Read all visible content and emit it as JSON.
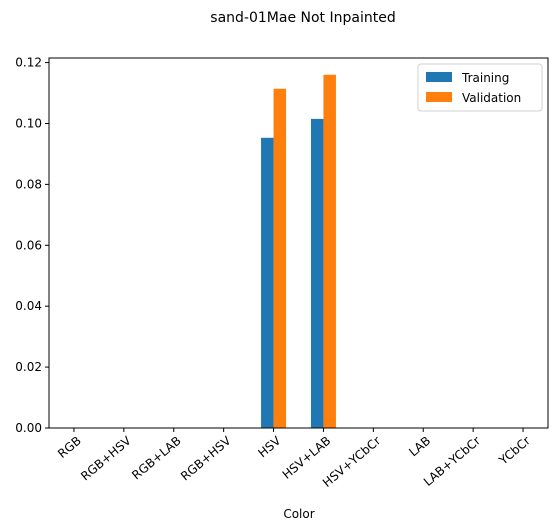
{
  "chart_data": {
    "type": "bar",
    "title": "sand-01Mae Not Inpainted",
    "xlabel": "Color",
    "ylabel": "",
    "categories": [
      "RGB",
      "RGB+HSV",
      "RGB+LAB",
      "RGB+HSV",
      "HSV",
      "HSV+LAB",
      "HSV+YCbCr",
      "LAB",
      "LAB+YCbCr",
      "YCbCr"
    ],
    "series": [
      {
        "name": "Training",
        "color": "#1f77b4",
        "values": [
          0,
          0,
          0,
          0,
          0.0953,
          0.1015,
          0,
          0,
          0,
          0
        ]
      },
      {
        "name": "Validation",
        "color": "#ff7f0e",
        "values": [
          0,
          0,
          0,
          0,
          0.1114,
          0.116,
          0,
          0,
          0,
          0
        ]
      }
    ],
    "ylim": [
      0,
      0.1215
    ],
    "yticks": [
      "0.00",
      "0.02",
      "0.04",
      "0.06",
      "0.08",
      "0.10",
      "0.12"
    ],
    "legend_position": "top-right",
    "grid": false
  }
}
